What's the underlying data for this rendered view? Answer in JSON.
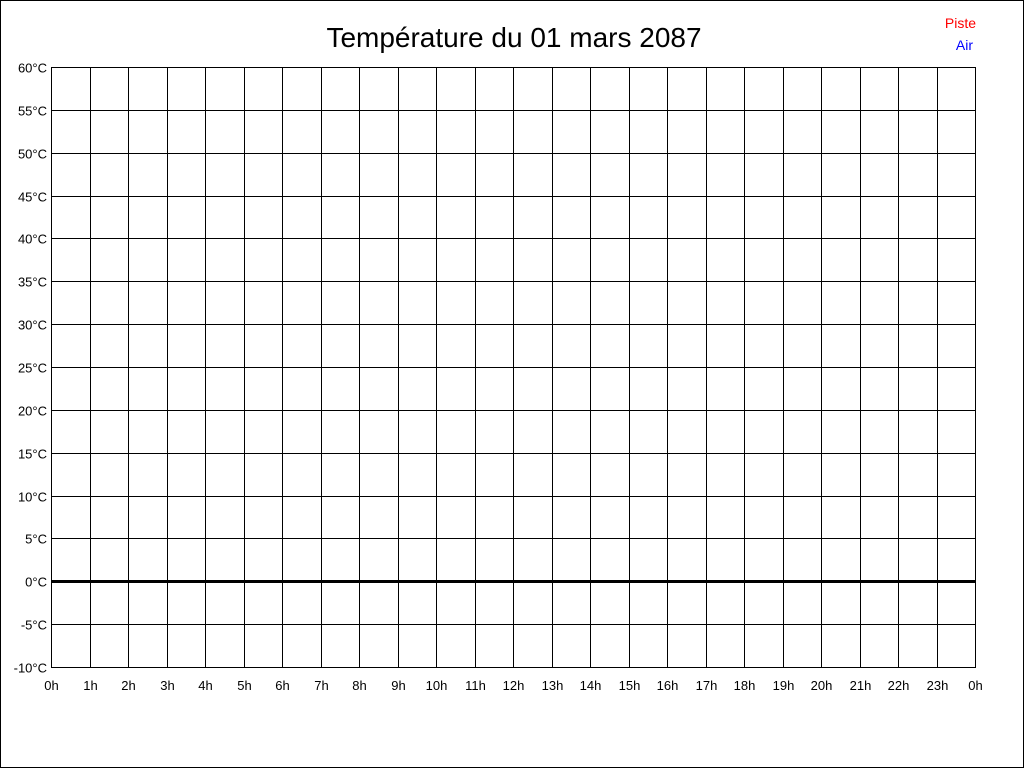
{
  "chart_data": {
    "type": "line",
    "title": "Température du 01 mars 2087",
    "xlabel": "",
    "ylabel": "",
    "x_tick_labels": [
      "0h",
      "1h",
      "2h",
      "3h",
      "4h",
      "5h",
      "6h",
      "7h",
      "8h",
      "9h",
      "10h",
      "11h",
      "12h",
      "13h",
      "14h",
      "15h",
      "16h",
      "17h",
      "18h",
      "19h",
      "20h",
      "21h",
      "22h",
      "23h",
      "0h"
    ],
    "y_ticks": [
      60,
      55,
      50,
      45,
      40,
      35,
      30,
      25,
      20,
      15,
      10,
      5,
      0,
      -5,
      -10
    ],
    "y_unit": "°C",
    "ylim": [
      -10,
      60
    ],
    "xlim": [
      0,
      24
    ],
    "grid": true,
    "legend_position": "top-right",
    "series": [
      {
        "name": "Piste",
        "color": "#ff0000",
        "values": []
      },
      {
        "name": "Air",
        "color": "#0000ff",
        "values": []
      }
    ]
  }
}
